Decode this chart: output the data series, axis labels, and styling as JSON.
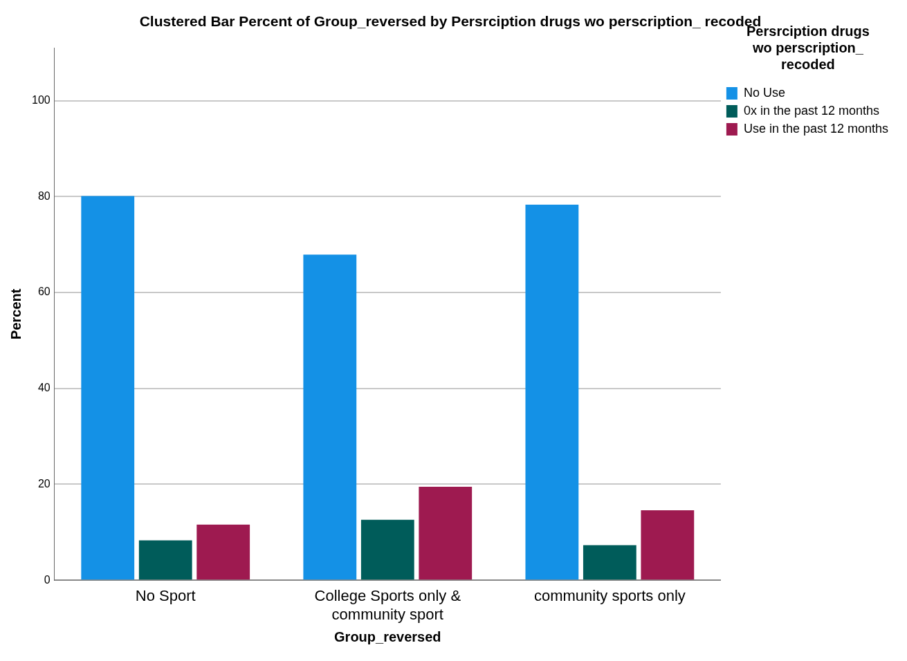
{
  "chart_data": {
    "type": "bar",
    "title": "Clustered Bar Percent of Group_reversed by Persrciption drugs wo perscription_ recoded",
    "xlabel": "Group_reversed",
    "ylabel": "Percent",
    "legend_title": "Persrciption drugs wo perscription_ recoded",
    "categories": [
      "No Sport",
      "College Sports only & community sport",
      "community sports only"
    ],
    "series": [
      {
        "name": "No Use",
        "color": "#1491e6",
        "values": [
          80.1,
          67.9,
          78.3
        ]
      },
      {
        "name": "0x in the past 12 months",
        "color": "#005c5a",
        "values": [
          8.3,
          12.6,
          7.3
        ]
      },
      {
        "name": "Use in the past 12 months",
        "color": "#9e1a50",
        "values": [
          11.6,
          19.5,
          14.6
        ]
      }
    ],
    "ylim": [
      0,
      111
    ],
    "yticks": [
      0,
      20,
      40,
      60,
      80,
      100
    ],
    "grid": "y",
    "legend": "right"
  }
}
